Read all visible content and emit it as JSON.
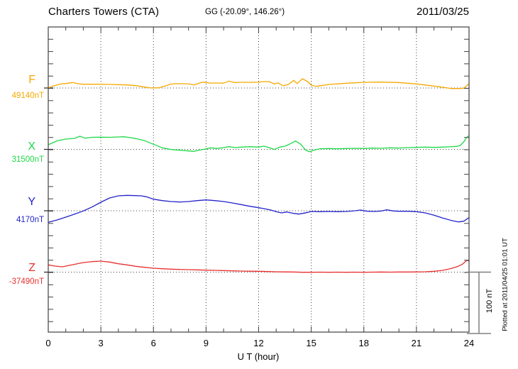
{
  "header": {
    "station": "Charters Towers (CTA)",
    "coordinates": "GG (-20.09°, 146.26°)",
    "date": "2011/03/25"
  },
  "components": [
    {
      "label": "F",
      "baseline_value": "49140nT",
      "color": "#F5A800"
    },
    {
      "label": "X",
      "baseline_value": "31500nT",
      "color": "#1FD94A"
    },
    {
      "label": "Y",
      "baseline_value": "4170nT",
      "color": "#2323CC"
    },
    {
      "label": "Z",
      "baseline_value": "-37490nT",
      "color": "#E83030"
    }
  ],
  "x_axis": {
    "label": "U T (hour)",
    "ticks": [
      0,
      3,
      6,
      9,
      12,
      15,
      18,
      21,
      24
    ],
    "minor_tick_step_hours": 1,
    "range": [
      0,
      24
    ]
  },
  "scale_bar": {
    "label": "100 nT",
    "nT": 100
  },
  "footer_note": "Plotted at 2011/04/25 01:01 UT",
  "chart_data": {
    "type": "line",
    "title": "Charters Towers (CTA) magnetogram 2011/03/25",
    "xlabel": "U T (hour)",
    "x_range": [
      0,
      24
    ],
    "grid": "dotted vertical lines every 3 hours; dotted horizontal baseline per component",
    "legend_position": "left margin (component letter + baseline value)",
    "y_tick_step_nT": 20,
    "y_units": "nT deviation from each component baseline (dotted line = baseline)",
    "series": [
      {
        "name": "F",
        "baseline": "49140nT",
        "color": "#F5A800",
        "points": [
          [
            0,
            0
          ],
          [
            0.3,
            3.5
          ],
          [
            0.7,
            6.5
          ],
          [
            1,
            7.3
          ],
          [
            1.4,
            8.9
          ],
          [
            1.7,
            6.9
          ],
          [
            2,
            6.1
          ],
          [
            2.5,
            6.1
          ],
          [
            3,
            6.1
          ],
          [
            3.5,
            5.8
          ],
          [
            4,
            5.4
          ],
          [
            4.5,
            5
          ],
          [
            5,
            3.8
          ],
          [
            5.5,
            1.5
          ],
          [
            5.9,
            0
          ],
          [
            6.3,
            0.3
          ],
          [
            6.7,
            3.5
          ],
          [
            7,
            6.5
          ],
          [
            7.5,
            7
          ],
          [
            8,
            6.8
          ],
          [
            8.3,
            5
          ],
          [
            8.8,
            9.6
          ],
          [
            9.2,
            8.1
          ],
          [
            9.6,
            8.1
          ],
          [
            10,
            7.9
          ],
          [
            10.3,
            11.2
          ],
          [
            10.6,
            8.9
          ],
          [
            11,
            9.2
          ],
          [
            11.5,
            9.2
          ],
          [
            12,
            9.5
          ],
          [
            12.3,
            10.4
          ],
          [
            12.6,
            10.4
          ],
          [
            12.9,
            6.5
          ],
          [
            13.1,
            8.4
          ],
          [
            13.4,
            3.5
          ],
          [
            13.7,
            5.8
          ],
          [
            14,
            12.4
          ],
          [
            14.2,
            7.3
          ],
          [
            14.5,
            15
          ],
          [
            14.8,
            10.4
          ],
          [
            15,
            4.6
          ],
          [
            15.3,
            2.7
          ],
          [
            16,
            5.8
          ],
          [
            17,
            7.7
          ],
          [
            18,
            9.2
          ],
          [
            19,
            9.6
          ],
          [
            20,
            8.9
          ],
          [
            21,
            6.6
          ],
          [
            22,
            3.1
          ],
          [
            22.6,
            0.8
          ],
          [
            23,
            -0.9
          ],
          [
            23.4,
            -0.9
          ],
          [
            23.7,
            -0.3
          ],
          [
            24,
            6.6
          ]
        ]
      },
      {
        "name": "X",
        "baseline": "31500nT",
        "color": "#1FD94A",
        "points": [
          [
            0,
            7.5
          ],
          [
            0.5,
            13.9
          ],
          [
            1,
            16.8
          ],
          [
            1.5,
            17.9
          ],
          [
            1.8,
            21.4
          ],
          [
            2.1,
            18.3
          ],
          [
            2.5,
            19.7
          ],
          [
            3,
            19.9
          ],
          [
            3.5,
            19.7
          ],
          [
            4,
            20.2
          ],
          [
            4.3,
            20.6
          ],
          [
            4.7,
            19.1
          ],
          [
            5,
            17.6
          ],
          [
            5.5,
            14.1
          ],
          [
            6,
            8.3
          ],
          [
            6.5,
            2.5
          ],
          [
            7,
            -0.2
          ],
          [
            7.5,
            -1.4
          ],
          [
            8,
            -2.5
          ],
          [
            8.3,
            -3.2
          ],
          [
            8.7,
            -0.9
          ],
          [
            9,
            0.9
          ],
          [
            9.3,
            2.5
          ],
          [
            9.6,
            1.4
          ],
          [
            10,
            2.9
          ],
          [
            10.3,
            4.4
          ],
          [
            10.7,
            2.9
          ],
          [
            11,
            3.7
          ],
          [
            11.5,
            4.4
          ],
          [
            12,
            3.7
          ],
          [
            12.3,
            5.2
          ],
          [
            12.6,
            2.9
          ],
          [
            12.9,
            -0.2
          ],
          [
            13.2,
            3.7
          ],
          [
            13.5,
            5.2
          ],
          [
            13.8,
            9
          ],
          [
            14.1,
            13.6
          ],
          [
            14.4,
            8.3
          ],
          [
            14.7,
            -1.7
          ],
          [
            14.9,
            -3.7
          ],
          [
            15.2,
            -0.9
          ],
          [
            15.5,
            0.9
          ],
          [
            16,
            1.4
          ],
          [
            16.5,
            0.9
          ],
          [
            17,
            1.4
          ],
          [
            17.5,
            1.7
          ],
          [
            18,
            1.4
          ],
          [
            18.5,
            2.1
          ],
          [
            19,
            1.7
          ],
          [
            19.5,
            2.5
          ],
          [
            20,
            2.1
          ],
          [
            20.5,
            2.9
          ],
          [
            21,
            3.2
          ],
          [
            21.5,
            3.7
          ],
          [
            22,
            3.2
          ],
          [
            22.5,
            3.7
          ],
          [
            23,
            4.4
          ],
          [
            23.3,
            4.9
          ],
          [
            23.5,
            6.4
          ],
          [
            23.7,
            12.1
          ],
          [
            23.85,
            19.1
          ],
          [
            24,
            22.5
          ]
        ]
      },
      {
        "name": "Y",
        "baseline": "4170nT",
        "color": "#2323CC",
        "points": [
          [
            0,
            -18.8
          ],
          [
            0.5,
            -15
          ],
          [
            1,
            -10.4
          ],
          [
            1.5,
            -5.4
          ],
          [
            2,
            -0.3
          ],
          [
            2.5,
            6.1
          ],
          [
            3,
            13.9
          ],
          [
            3.5,
            20.8
          ],
          [
            4,
            24.3
          ],
          [
            4.5,
            25.1
          ],
          [
            5,
            24.6
          ],
          [
            5.3,
            24.3
          ],
          [
            5.6,
            22.8
          ],
          [
            6,
            18.8
          ],
          [
            6.5,
            16.5
          ],
          [
            7,
            15
          ],
          [
            7.5,
            14.2
          ],
          [
            8,
            15
          ],
          [
            8.5,
            16.5
          ],
          [
            9,
            17.7
          ],
          [
            9.5,
            16.5
          ],
          [
            10,
            15
          ],
          [
            10.5,
            12.7
          ],
          [
            11,
            10.1
          ],
          [
            11.5,
            7.3
          ],
          [
            12,
            5
          ],
          [
            12.3,
            3.5
          ],
          [
            12.7,
            1.2
          ],
          [
            13,
            -1.5
          ],
          [
            13.3,
            -3.5
          ],
          [
            13.6,
            -2
          ],
          [
            14,
            -4.3
          ],
          [
            14.3,
            -5.4
          ],
          [
            14.8,
            -2.7
          ],
          [
            15,
            -1.2
          ],
          [
            15.5,
            -1.5
          ],
          [
            16,
            -1.2
          ],
          [
            16.5,
            -1.5
          ],
          [
            17,
            -1.2
          ],
          [
            17.5,
            0
          ],
          [
            17.8,
            1.2
          ],
          [
            18.2,
            -0.8
          ],
          [
            18.6,
            -1.2
          ],
          [
            19,
            -0.3
          ],
          [
            19.3,
            1.5
          ],
          [
            19.7,
            -0.3
          ],
          [
            20,
            -0.8
          ],
          [
            20.5,
            -0.8
          ],
          [
            21,
            -1.5
          ],
          [
            21.5,
            -3.5
          ],
          [
            22,
            -7.3
          ],
          [
            22.5,
            -11.9
          ],
          [
            23,
            -15.8
          ],
          [
            23.4,
            -18.2
          ],
          [
            23.7,
            -17
          ],
          [
            24,
            -11.2
          ]
        ]
      },
      {
        "name": "Z",
        "baseline": "-37490nT",
        "color": "#E83030",
        "points": [
          [
            0,
            11.8
          ],
          [
            0.4,
            9.8
          ],
          [
            0.8,
            8.7
          ],
          [
            1.2,
            11
          ],
          [
            1.6,
            13.3
          ],
          [
            2,
            15.6
          ],
          [
            2.5,
            17.1
          ],
          [
            3,
            17.9
          ],
          [
            3.5,
            16.4
          ],
          [
            4,
            13.6
          ],
          [
            4.5,
            11.8
          ],
          [
            5,
            9.5
          ],
          [
            5.5,
            7.9
          ],
          [
            6,
            6.4
          ],
          [
            6.5,
            5.5
          ],
          [
            7,
            4.9
          ],
          [
            7.5,
            4.4
          ],
          [
            8,
            4
          ],
          [
            8.5,
            3.7
          ],
          [
            9,
            3.2
          ],
          [
            9.5,
            2.9
          ],
          [
            10,
            2.5
          ],
          [
            10.5,
            2.1
          ],
          [
            11,
            1.7
          ],
          [
            11.5,
            1.5
          ],
          [
            12,
            1.4
          ],
          [
            12.5,
            0.9
          ],
          [
            13,
            0.6
          ],
          [
            13.5,
            0.3
          ],
          [
            14,
            0.2
          ],
          [
            14.5,
            -0.2
          ],
          [
            15,
            -0.2
          ],
          [
            15.5,
            0
          ],
          [
            16,
            -0.2
          ],
          [
            16.5,
            0
          ],
          [
            17,
            -0.2
          ],
          [
            17.5,
            0
          ],
          [
            18,
            -0.2
          ],
          [
            18.5,
            0
          ],
          [
            19,
            0.2
          ],
          [
            19.5,
            0
          ],
          [
            20,
            0.2
          ],
          [
            20.5,
            0.2
          ],
          [
            21,
            0.3
          ],
          [
            21.5,
            0.6
          ],
          [
            22,
            1.4
          ],
          [
            22.5,
            2.9
          ],
          [
            23,
            6
          ],
          [
            23.3,
            8.7
          ],
          [
            23.6,
            12.5
          ],
          [
            23.9,
            19.7
          ],
          [
            24,
            17.9
          ]
        ]
      }
    ]
  }
}
